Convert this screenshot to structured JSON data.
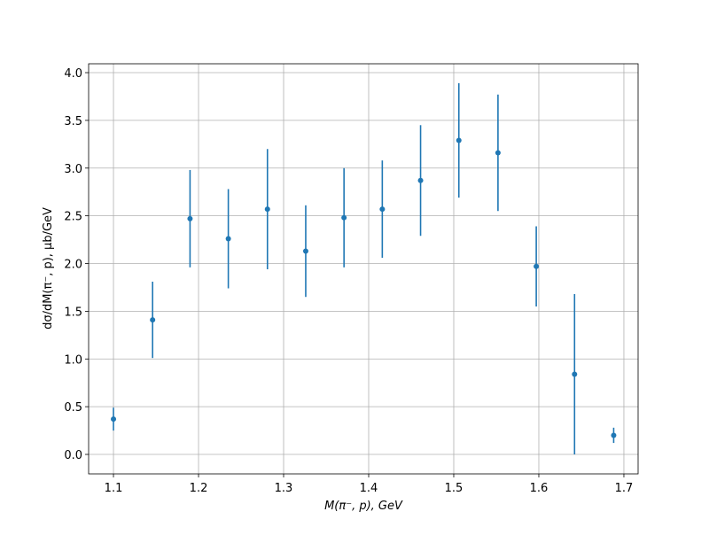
{
  "chart_data": {
    "type": "errorbar",
    "xlabel": "M(π⁻, p), GeV",
    "ylabel": "dσ/dM(π⁻, p), μb/GeV",
    "x": [
      1.1,
      1.146,
      1.19,
      1.235,
      1.281,
      1.326,
      1.371,
      1.416,
      1.461,
      1.506,
      1.552,
      1.597,
      1.642,
      1.688
    ],
    "values": [
      0.37,
      1.41,
      2.47,
      2.26,
      2.57,
      2.13,
      2.48,
      2.57,
      2.87,
      3.29,
      3.16,
      1.97,
      0.84,
      0.2
    ],
    "errors": [
      0.12,
      0.4,
      0.51,
      0.52,
      0.63,
      0.48,
      0.52,
      0.51,
      0.58,
      0.6,
      0.61,
      0.42,
      0.84,
      0.08
    ],
    "color": "#1f77b4",
    "xlim": [
      1.0708,
      1.7167
    ],
    "ylim": [
      -0.204,
      4.093
    ],
    "xticks": [
      1.1,
      1.2,
      1.3,
      1.4,
      1.5,
      1.6,
      1.7
    ],
    "yticks": [
      {
        "value": 0,
        "label": "0.0"
      },
      {
        "value": 0.5,
        "label": "0.5"
      },
      {
        "value": 1,
        "label": "1.0"
      },
      {
        "value": 1.5,
        "label": "1.5"
      },
      {
        "value": 2,
        "label": "2.0"
      },
      {
        "value": 2.5,
        "label": "2.5"
      },
      {
        "value": 3,
        "label": "3.0"
      },
      {
        "value": 3.5,
        "label": "3.5"
      },
      {
        "value": 4,
        "label": "4.0"
      }
    ],
    "grid": true
  }
}
